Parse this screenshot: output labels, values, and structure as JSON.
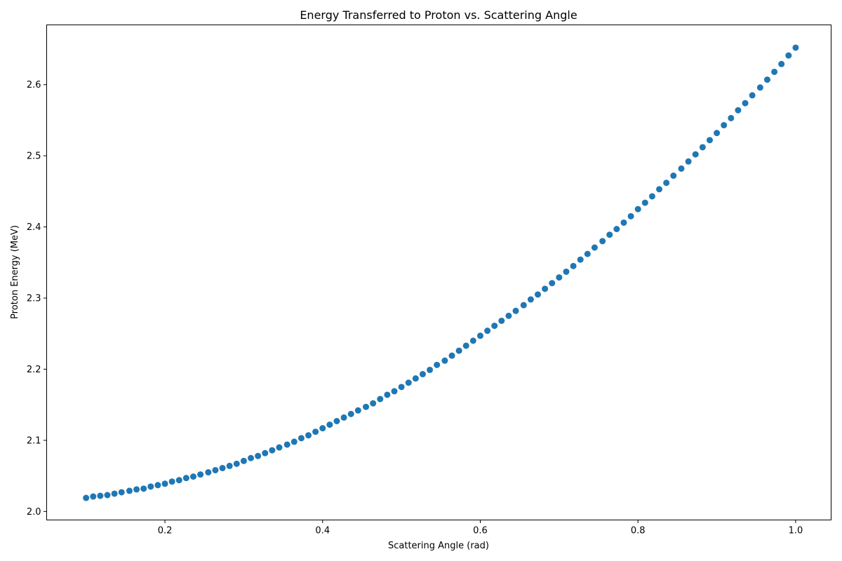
{
  "chart_data": {
    "type": "scatter",
    "title": "Energy Transferred to Proton vs. Scattering Angle",
    "xlabel": "Scattering Angle (rad)",
    "ylabel": "Proton Energy (MeV)",
    "xlim": [
      0.05,
      1.045
    ],
    "ylim": [
      1.988,
      2.684
    ],
    "xticks": [
      0.2,
      0.4,
      0.6,
      0.8,
      1.0
    ],
    "xtick_labels": [
      "0.2",
      "0.4",
      "0.6",
      "0.8",
      "1.0"
    ],
    "yticks": [
      2.0,
      2.1,
      2.2,
      2.3,
      2.4,
      2.5,
      2.6
    ],
    "ytick_labels": [
      "2.0",
      "2.1",
      "2.2",
      "2.3",
      "2.4",
      "2.5",
      "2.6"
    ],
    "grid": false,
    "marker_color": "#1f77b4",
    "series": [
      {
        "x": [
          0.1,
          0.109,
          0.118,
          0.127,
          0.136,
          0.145,
          0.155,
          0.164,
          0.173,
          0.182,
          0.191,
          0.2,
          0.209,
          0.218,
          0.227,
          0.236,
          0.245,
          0.255,
          0.264,
          0.273,
          0.282,
          0.291,
          0.3,
          0.309,
          0.318,
          0.327,
          0.336,
          0.345,
          0.355,
          0.364,
          0.373,
          0.382,
          0.391,
          0.4,
          0.409,
          0.418,
          0.427,
          0.436,
          0.445,
          0.455,
          0.464,
          0.473,
          0.482,
          0.491,
          0.5,
          0.509,
          0.518,
          0.527,
          0.536,
          0.545,
          0.555,
          0.564,
          0.573,
          0.582,
          0.591,
          0.6,
          0.609,
          0.618,
          0.627,
          0.636,
          0.645,
          0.655,
          0.664,
          0.673,
          0.682,
          0.691,
          0.7,
          0.709,
          0.718,
          0.727,
          0.736,
          0.745,
          0.755,
          0.764,
          0.773,
          0.782,
          0.791,
          0.8,
          0.809,
          0.818,
          0.827,
          0.836,
          0.845,
          0.855,
          0.864,
          0.873,
          0.882,
          0.891,
          0.9,
          0.909,
          0.918,
          0.927,
          0.936,
          0.945,
          0.955,
          0.964,
          0.973,
          0.982,
          0.991,
          1.0
        ],
        "y": [
          2.019,
          2.021,
          2.022,
          2.023,
          2.025,
          2.027,
          2.029,
          2.031,
          2.032,
          2.035,
          2.037,
          2.039,
          2.042,
          2.044,
          2.047,
          2.049,
          2.052,
          2.055,
          2.058,
          2.061,
          2.064,
          2.067,
          2.071,
          2.075,
          2.078,
          2.082,
          2.086,
          2.09,
          2.094,
          2.098,
          2.103,
          2.107,
          2.112,
          2.117,
          2.122,
          2.127,
          2.132,
          2.137,
          2.142,
          2.147,
          2.152,
          2.158,
          2.164,
          2.169,
          2.175,
          2.181,
          2.187,
          2.193,
          2.199,
          2.206,
          2.212,
          2.219,
          2.226,
          2.233,
          2.24,
          2.247,
          2.254,
          2.261,
          2.268,
          2.275,
          2.282,
          2.29,
          2.298,
          2.305,
          2.313,
          2.321,
          2.329,
          2.337,
          2.345,
          2.354,
          2.362,
          2.371,
          2.38,
          2.389,
          2.397,
          2.406,
          2.415,
          2.425,
          2.434,
          2.443,
          2.453,
          2.462,
          2.472,
          2.482,
          2.492,
          2.502,
          2.512,
          2.522,
          2.532,
          2.543,
          2.553,
          2.564,
          2.574,
          2.585,
          2.596,
          2.607,
          2.618,
          2.629,
          2.641,
          2.652
        ]
      }
    ]
  }
}
